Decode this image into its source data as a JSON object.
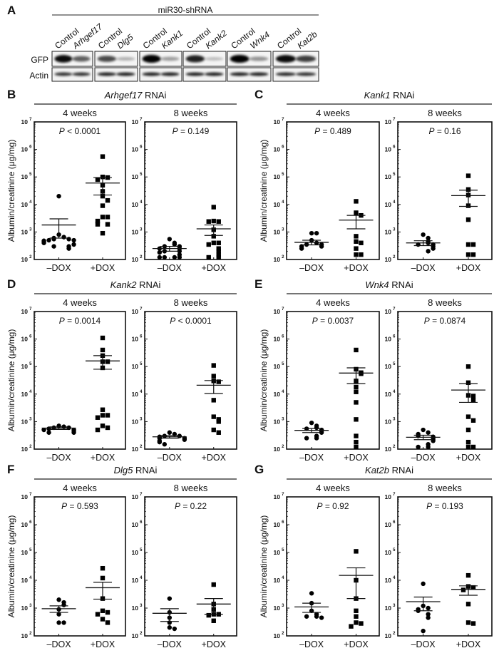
{
  "panel_a": {
    "letter": "A",
    "header": "miR30-shRNA",
    "row_labels": [
      "GFP",
      "Actin"
    ],
    "groups": [
      {
        "lanes": [
          "Control",
          "Arhgef17"
        ],
        "gfp": [
          0.95,
          0.55
        ],
        "actin": [
          0.8,
          0.8
        ]
      },
      {
        "lanes": [
          "Control",
          "Dlg5"
        ],
        "gfp": [
          0.65,
          0.15
        ],
        "actin": [
          0.9,
          0.9
        ]
      },
      {
        "lanes": [
          "Control",
          "Kank1"
        ],
        "gfp": [
          1.0,
          0.25
        ],
        "actin": [
          0.9,
          0.9
        ]
      },
      {
        "lanes": [
          "Control",
          "Kank2"
        ],
        "gfp": [
          0.85,
          0.1
        ],
        "actin": [
          0.9,
          0.9
        ]
      },
      {
        "lanes": [
          "Control",
          "Wnk4"
        ],
        "gfp": [
          1.0,
          0.3
        ],
        "actin": [
          0.9,
          0.9
        ]
      },
      {
        "lanes": [
          "Control",
          "Kat2b"
        ],
        "gfp": [
          0.95,
          0.7
        ],
        "actin": [
          0.85,
          0.8
        ]
      }
    ]
  },
  "chart_data": [
    {
      "type": "scatter",
      "letter": "B",
      "gene": "Arhgef17",
      "suffix": "RNAi",
      "ylabel": "Albumin/creatinine (μg/mg)",
      "yscale": "log",
      "ylim": [
        100,
        10000000
      ],
      "yticks": [
        "10^2",
        "10^3",
        "10^4",
        "10^5",
        "10^6",
        "10^7"
      ],
      "categories": [
        "–DOX",
        "+DOX"
      ],
      "subplots": [
        {
          "title": "4 weeks",
          "p": "P < 0.0001",
          "groups": [
            {
              "marker": "circle",
              "values": [
                20000,
                800,
                650,
                600,
                550,
                550,
                500,
                500,
                480,
                450,
                400,
                350,
                300,
                300,
                250
              ],
              "mean": 1800,
              "sem": [
                600,
                3000
              ]
            },
            {
              "marker": "square",
              "values": [
                550000,
                100000,
                95000,
                80000,
                50000,
                30000,
                20000,
                14000,
                9000,
                3500,
                3500,
                2500,
                1900,
                1900,
                900
              ],
              "mean": 60000,
              "sem": [
                22000,
                95000
              ]
            }
          ]
        },
        {
          "title": "8 weeks",
          "p": "P = 0.149",
          "groups": [
            {
              "marker": "circle",
              "values": [
                550,
                400,
                350,
                300,
                300,
                250,
                250,
                200,
                200,
                180,
                150,
                100,
                100,
                100,
                100
              ],
              "mean": 250,
              "sem": [
                200,
                300
              ]
            },
            {
              "marker": "square",
              "values": [
                8000,
                2500,
                2400,
                2400,
                1200,
                700,
                400,
                400,
                350,
                250,
                200,
                150,
                110,
                100
              ],
              "mean": 1300,
              "sem": [
                750,
                1800
              ]
            }
          ]
        }
      ]
    },
    {
      "type": "scatter",
      "letter": "C",
      "gene": "Kank1",
      "suffix": "RNAi",
      "ylabel": "Albumin/creatinine (μg/mg)",
      "yscale": "log",
      "ylim": [
        100,
        10000000
      ],
      "yticks": [
        "10^2",
        "10^3",
        "10^4",
        "10^5",
        "10^6",
        "10^7"
      ],
      "categories": [
        "–DOX",
        "+DOX"
      ],
      "subplots": [
        {
          "title": "4 weeks",
          "p": "P = 0.489",
          "groups": [
            {
              "marker": "circle",
              "values": [
                900,
                900,
                500,
                400,
                350,
                350,
                300,
                300,
                250
              ],
              "mean": 420,
              "sem": [
                340,
                500
              ]
            },
            {
              "marker": "square",
              "values": [
                13000,
                5000,
                4000,
                700,
                450,
                400,
                250,
                150,
                150
              ],
              "mean": 2700,
              "sem": [
                1300,
                4000
              ]
            }
          ]
        },
        {
          "title": "8 weeks",
          "p": "P = 0.16",
          "groups": [
            {
              "marker": "circle",
              "values": [
                800,
                600,
                450,
                400,
                350,
                350,
                300,
                250,
                200
              ],
              "mean": 400,
              "sem": [
                320,
                480
              ]
            },
            {
              "marker": "square",
              "values": [
                110000,
                35000,
                22000,
                9000,
                2800,
                350,
                350,
                150,
                150
              ],
              "mean": 21000,
              "sem": [
                8500,
                33000
              ]
            }
          ]
        }
      ]
    },
    {
      "type": "scatter",
      "letter": "D",
      "gene": "Kank2",
      "suffix": "RNAi",
      "ylabel": "Albumin/creatinine (μg/mg)",
      "yscale": "log",
      "ylim": [
        100,
        10000000
      ],
      "yticks": [
        "10^2",
        "10^3",
        "10^4",
        "10^5",
        "10^6",
        "10^7"
      ],
      "categories": [
        "–DOX",
        "+DOX"
      ],
      "subplots": [
        {
          "title": "4 weeks",
          "p": "P = 0.0014",
          "groups": [
            {
              "marker": "circle",
              "values": [
                700,
                650,
                600,
                600,
                550,
                500,
                500,
                450,
                400,
                400
              ],
              "mean": 580,
              "sem": [
                520,
                640
              ]
            },
            {
              "marker": "square",
              "values": [
                1100000,
                400000,
                250000,
                150000,
                150000,
                90000,
                2700,
                1700,
                1700,
                1400,
                700,
                600,
                500
              ],
              "mean": 160000,
              "sem": [
                80000,
                250000
              ]
            }
          ]
        },
        {
          "title": "8 weeks",
          "p": "P < 0.0001",
          "groups": [
            {
              "marker": "circle",
              "values": [
                400,
                350,
                300,
                300,
                280,
                250,
                250,
                220,
                200,
                180,
                150
              ],
              "mean": 280,
              "sem": [
                250,
                310
              ]
            },
            {
              "marker": "square",
              "values": [
                110000,
                45000,
                30000,
                28000,
                6000,
                1500,
                1200,
                1000,
                500,
                400
              ],
              "mean": 21000,
              "sem": [
                10500,
                31000
              ]
            }
          ]
        }
      ]
    },
    {
      "type": "scatter",
      "letter": "E",
      "gene": "Wnk4",
      "suffix": "RNAi",
      "ylabel": "Albumin/creatinine (μg/mg)",
      "yscale": "log",
      "ylim": [
        100,
        10000000
      ],
      "yticks": [
        "10^2",
        "10^3",
        "10^4",
        "10^5",
        "10^6",
        "10^7"
      ],
      "categories": [
        "–DOX",
        "+DOX"
      ],
      "subplots": [
        {
          "title": "4 weeks",
          "p": "P = 0.0037",
          "groups": [
            {
              "marker": "circle",
              "values": [
                900,
                700,
                600,
                550,
                500,
                450,
                400,
                300,
                250,
                250
              ],
              "mean": 480,
              "sem": [
                400,
                560
              ]
            },
            {
              "marker": "square",
              "values": [
                400000,
                80000,
                60000,
                55000,
                30000,
                18000,
                12000,
                5000,
                1200,
                300,
                180,
                110
              ],
              "mean": 58000,
              "sem": [
                24000,
                90000
              ]
            }
          ]
        },
        {
          "title": "8 weeks",
          "p": "P = 0.0874",
          "groups": [
            {
              "marker": "circle",
              "values": [
                500,
                400,
                350,
                300,
                280,
                250,
                220,
                200,
                150,
                120,
                100
              ],
              "mean": 270,
              "sem": [
                220,
                320
              ]
            },
            {
              "marker": "square",
              "values": [
                100000,
                26000,
                9000,
                8500,
                6000,
                1500,
                1100,
                500,
                180,
                110,
                110
              ],
              "mean": 14000,
              "sem": [
                5000,
                24000
              ]
            }
          ]
        }
      ]
    },
    {
      "type": "scatter",
      "letter": "F",
      "gene": "Dlg5",
      "suffix": "RNAi",
      "ylabel": "Albumin/creatinine (μg/mg)",
      "yscale": "log",
      "ylim": [
        100,
        10000000
      ],
      "yticks": [
        "10^2",
        "10^3",
        "10^4",
        "10^5",
        "10^6",
        "10^7"
      ],
      "categories": [
        "–DOX",
        "+DOX"
      ],
      "subplots": [
        {
          "title": "4 weeks",
          "p": "P = 0.593",
          "groups": [
            {
              "marker": "circle",
              "values": [
                2000,
                1600,
                1300,
                900,
                600,
                300,
                300
              ],
              "mean": 950,
              "sem": [
                700,
                1200
              ]
            },
            {
              "marker": "square",
              "values": [
                27000,
                12000,
                2200,
                800,
                700,
                600,
                400,
                300
              ],
              "mean": 5400,
              "sem": [
                2100,
                8500
              ]
            }
          ]
        },
        {
          "title": "8 weeks",
          "p": "P = 0.22",
          "groups": [
            {
              "marker": "circle",
              "values": [
                2200,
                700,
                450,
                300,
                200,
                180
              ],
              "mean": 650,
              "sem": [
                330,
                950
              ]
            },
            {
              "marker": "square",
              "values": [
                7000,
                1400,
                900,
                600,
                600,
                550,
                350
              ],
              "mean": 1400,
              "sem": [
                600,
                2200
              ]
            }
          ]
        }
      ]
    },
    {
      "type": "scatter",
      "letter": "G",
      "gene": "Kat2b",
      "suffix": "RNAi",
      "ylabel": "Albumin/creatinine (μg/mg)",
      "yscale": "log",
      "ylim": [
        100,
        10000000
      ],
      "yticks": [
        "10^2",
        "10^3",
        "10^4",
        "10^5",
        "10^6",
        "10^7"
      ],
      "categories": [
        "–DOX",
        "+DOX"
      ],
      "subplots": [
        {
          "title": "4 weeks",
          "p": "P = 0.92",
          "groups": [
            {
              "marker": "circle",
              "values": [
                3400,
                1500,
                800,
                600,
                500,
                500,
                450
              ],
              "mean": 1100,
              "sem": [
                700,
                1500
              ]
            },
            {
              "marker": "square",
              "values": [
                110000,
                10000,
                2200,
                800,
                500,
                300,
                280,
                220
              ],
              "mean": 15000,
              "sem": [
                2200,
                28000
              ]
            }
          ]
        },
        {
          "title": "8 weeks",
          "p": "P = 0.193",
          "groups": [
            {
              "marker": "circle",
              "values": [
                7500,
                1200,
                1000,
                900,
                800,
                600,
                450,
                150
              ],
              "mean": 1700,
              "sem": [
                800,
                2500
              ]
            },
            {
              "marker": "square",
              "values": [
                15000,
                6000,
                5500,
                4500,
                1400,
                300,
                280
              ],
              "mean": 4700,
              "sem": [
                2900,
                6300
              ]
            }
          ]
        }
      ]
    }
  ]
}
